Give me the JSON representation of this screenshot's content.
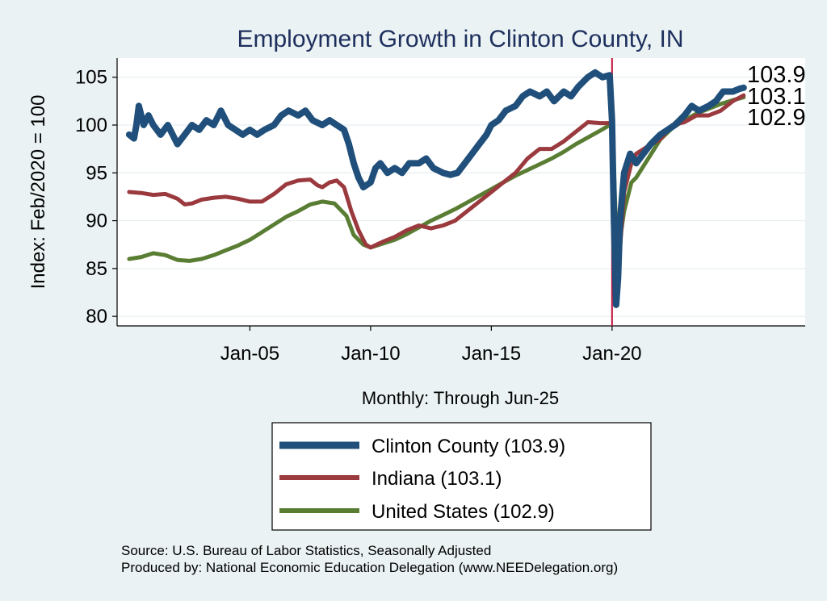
{
  "chart_data": {
    "type": "line",
    "title": "Employment Growth in Clinton  County, IN",
    "ylabel": "Index: Feb/2020 = 100",
    "xlabel": "Monthly: Through Jun-25",
    "ylim": [
      79,
      107
    ],
    "yticks": [
      80,
      85,
      90,
      95,
      100,
      105
    ],
    "xlim": [
      1999.5,
      2028.0
    ],
    "xticks": [
      {
        "label": "Jan-05",
        "value": 2005.0
      },
      {
        "label": "Jan-10",
        "value": 2010.0
      },
      {
        "label": "Jan-15",
        "value": 2015.0
      },
      {
        "label": "Jan-20",
        "value": 2020.0
      }
    ],
    "vline": 2020.0,
    "vline_color": "#c0143c",
    "grid": true,
    "series": [
      {
        "name": "Clinton  County",
        "legend": "Clinton  County (103.9)",
        "end_value": "103.9",
        "color": "#1f4f7a",
        "width": 8,
        "points": [
          [
            2000.0,
            99.0
          ],
          [
            2000.2,
            98.6
          ],
          [
            2000.3,
            100.0
          ],
          [
            2000.4,
            102.0
          ],
          [
            2000.6,
            100.0
          ],
          [
            2000.8,
            101.0
          ],
          [
            2001.0,
            100.0
          ],
          [
            2001.3,
            99.0
          ],
          [
            2001.6,
            100.0
          ],
          [
            2001.8,
            99.0
          ],
          [
            2002.0,
            98.0
          ],
          [
            2002.3,
            99.0
          ],
          [
            2002.6,
            100.0
          ],
          [
            2002.9,
            99.5
          ],
          [
            2003.2,
            100.5
          ],
          [
            2003.5,
            100.0
          ],
          [
            2003.8,
            101.5
          ],
          [
            2004.1,
            100.0
          ],
          [
            2004.4,
            99.5
          ],
          [
            2004.7,
            99.0
          ],
          [
            2005.0,
            99.5
          ],
          [
            2005.3,
            99.0
          ],
          [
            2005.6,
            99.5
          ],
          [
            2006.0,
            100.0
          ],
          [
            2006.3,
            101.0
          ],
          [
            2006.6,
            101.5
          ],
          [
            2007.0,
            101.0
          ],
          [
            2007.3,
            101.5
          ],
          [
            2007.6,
            100.5
          ],
          [
            2008.0,
            100.0
          ],
          [
            2008.3,
            100.5
          ],
          [
            2008.6,
            100.0
          ],
          [
            2008.9,
            99.5
          ],
          [
            2009.1,
            98.0
          ],
          [
            2009.3,
            96.0
          ],
          [
            2009.5,
            94.5
          ],
          [
            2009.7,
            93.5
          ],
          [
            2010.0,
            94.0
          ],
          [
            2010.2,
            95.5
          ],
          [
            2010.4,
            96.0
          ],
          [
            2010.7,
            95.0
          ],
          [
            2011.0,
            95.5
          ],
          [
            2011.3,
            95.0
          ],
          [
            2011.6,
            96.0
          ],
          [
            2012.0,
            96.0
          ],
          [
            2012.3,
            96.5
          ],
          [
            2012.6,
            95.5
          ],
          [
            2013.0,
            95.0
          ],
          [
            2013.3,
            94.8
          ],
          [
            2013.6,
            95.0
          ],
          [
            2013.9,
            96.0
          ],
          [
            2014.2,
            97.0
          ],
          [
            2014.5,
            98.0
          ],
          [
            2014.8,
            99.0
          ],
          [
            2015.0,
            100.0
          ],
          [
            2015.3,
            100.5
          ],
          [
            2015.6,
            101.5
          ],
          [
            2016.0,
            102.0
          ],
          [
            2016.3,
            103.0
          ],
          [
            2016.6,
            103.5
          ],
          [
            2017.0,
            103.0
          ],
          [
            2017.3,
            103.5
          ],
          [
            2017.6,
            102.5
          ],
          [
            2018.0,
            103.5
          ],
          [
            2018.3,
            103.0
          ],
          [
            2018.6,
            104.0
          ],
          [
            2019.0,
            105.0
          ],
          [
            2019.3,
            105.5
          ],
          [
            2019.6,
            105.0
          ],
          [
            2019.9,
            105.2
          ],
          [
            2020.0,
            100.5
          ],
          [
            2020.08,
            90.0
          ],
          [
            2020.17,
            81.2
          ],
          [
            2020.25,
            84.0
          ],
          [
            2020.33,
            90.0
          ],
          [
            2020.5,
            95.0
          ],
          [
            2020.75,
            97.0
          ],
          [
            2021.0,
            96.0
          ],
          [
            2021.3,
            97.0
          ],
          [
            2021.6,
            98.0
          ],
          [
            2022.0,
            99.0
          ],
          [
            2022.3,
            99.5
          ],
          [
            2022.6,
            100.0
          ],
          [
            2023.0,
            101.0
          ],
          [
            2023.3,
            102.0
          ],
          [
            2023.6,
            101.5
          ],
          [
            2024.0,
            102.0
          ],
          [
            2024.3,
            102.5
          ],
          [
            2024.6,
            103.5
          ],
          [
            2025.0,
            103.5
          ],
          [
            2025.3,
            103.8
          ],
          [
            2025.45,
            103.9
          ]
        ]
      },
      {
        "name": "Indiana",
        "legend": "Indiana (103.1)",
        "end_value": "103.1",
        "color": "#9b3a3e",
        "width": 5,
        "points": [
          [
            2000.0,
            93.0
          ],
          [
            2000.5,
            92.9
          ],
          [
            2001.0,
            92.7
          ],
          [
            2001.5,
            92.8
          ],
          [
            2002.0,
            92.3
          ],
          [
            2002.3,
            91.7
          ],
          [
            2002.6,
            91.8
          ],
          [
            2003.0,
            92.2
          ],
          [
            2003.5,
            92.4
          ],
          [
            2004.0,
            92.5
          ],
          [
            2004.5,
            92.3
          ],
          [
            2005.0,
            92.0
          ],
          [
            2005.5,
            92.0
          ],
          [
            2006.0,
            92.8
          ],
          [
            2006.5,
            93.8
          ],
          [
            2007.0,
            94.2
          ],
          [
            2007.5,
            94.3
          ],
          [
            2007.8,
            93.7
          ],
          [
            2008.0,
            93.5
          ],
          [
            2008.3,
            94.0
          ],
          [
            2008.6,
            94.2
          ],
          [
            2008.9,
            93.5
          ],
          [
            2009.2,
            91.0
          ],
          [
            2009.5,
            89.0
          ],
          [
            2009.8,
            87.5
          ],
          [
            2010.0,
            87.2
          ],
          [
            2010.5,
            87.8
          ],
          [
            2011.0,
            88.3
          ],
          [
            2011.5,
            89.0
          ],
          [
            2012.0,
            89.5
          ],
          [
            2012.5,
            89.2
          ],
          [
            2013.0,
            89.5
          ],
          [
            2013.5,
            90.0
          ],
          [
            2014.0,
            91.0
          ],
          [
            2014.5,
            92.0
          ],
          [
            2015.0,
            93.0
          ],
          [
            2015.5,
            94.0
          ],
          [
            2016.0,
            95.0
          ],
          [
            2016.5,
            96.5
          ],
          [
            2017.0,
            97.5
          ],
          [
            2017.5,
            97.5
          ],
          [
            2018.0,
            98.3
          ],
          [
            2018.5,
            99.3
          ],
          [
            2019.0,
            100.3
          ],
          [
            2019.5,
            100.2
          ],
          [
            2019.9,
            100.2
          ],
          [
            2020.0,
            100.0
          ],
          [
            2020.1,
            92.0
          ],
          [
            2020.2,
            83.5
          ],
          [
            2020.3,
            86.0
          ],
          [
            2020.5,
            93.0
          ],
          [
            2020.8,
            96.0
          ],
          [
            2021.0,
            97.0
          ],
          [
            2021.5,
            97.8
          ],
          [
            2022.0,
            98.5
          ],
          [
            2022.5,
            100.0
          ],
          [
            2023.0,
            100.3
          ],
          [
            2023.5,
            101.0
          ],
          [
            2024.0,
            101.0
          ],
          [
            2024.5,
            101.5
          ],
          [
            2025.0,
            102.5
          ],
          [
            2025.45,
            103.1
          ]
        ]
      },
      {
        "name": "United States",
        "legend": "United States (102.9)",
        "end_value": "102.9",
        "color": "#5a7d34",
        "width": 5,
        "points": [
          [
            2000.0,
            86.0
          ],
          [
            2000.5,
            86.2
          ],
          [
            2001.0,
            86.6
          ],
          [
            2001.5,
            86.4
          ],
          [
            2002.0,
            85.9
          ],
          [
            2002.5,
            85.8
          ],
          [
            2003.0,
            86.0
          ],
          [
            2003.5,
            86.4
          ],
          [
            2004.0,
            86.9
          ],
          [
            2004.5,
            87.4
          ],
          [
            2005.0,
            88.0
          ],
          [
            2005.5,
            88.8
          ],
          [
            2006.0,
            89.6
          ],
          [
            2006.5,
            90.4
          ],
          [
            2007.0,
            91.0
          ],
          [
            2007.5,
            91.7
          ],
          [
            2008.0,
            92.0
          ],
          [
            2008.5,
            91.8
          ],
          [
            2009.0,
            90.5
          ],
          [
            2009.3,
            88.5
          ],
          [
            2009.7,
            87.5
          ],
          [
            2010.0,
            87.2
          ],
          [
            2010.5,
            87.6
          ],
          [
            2011.0,
            88.0
          ],
          [
            2011.5,
            88.6
          ],
          [
            2012.0,
            89.3
          ],
          [
            2012.5,
            90.0
          ],
          [
            2013.0,
            90.6
          ],
          [
            2013.5,
            91.2
          ],
          [
            2014.0,
            91.9
          ],
          [
            2014.5,
            92.6
          ],
          [
            2015.0,
            93.3
          ],
          [
            2015.5,
            94.0
          ],
          [
            2016.0,
            94.7
          ],
          [
            2016.5,
            95.3
          ],
          [
            2017.0,
            95.9
          ],
          [
            2017.5,
            96.5
          ],
          [
            2018.0,
            97.2
          ],
          [
            2018.5,
            98.0
          ],
          [
            2019.0,
            98.7
          ],
          [
            2019.5,
            99.4
          ],
          [
            2019.9,
            100.0
          ],
          [
            2020.0,
            100.0
          ],
          [
            2020.1,
            94.0
          ],
          [
            2020.2,
            86.0
          ],
          [
            2020.3,
            87.5
          ],
          [
            2020.5,
            91.0
          ],
          [
            2020.8,
            94.0
          ],
          [
            2021.0,
            94.5
          ],
          [
            2021.5,
            96.5
          ],
          [
            2022.0,
            98.5
          ],
          [
            2022.5,
            99.7
          ],
          [
            2023.0,
            100.5
          ],
          [
            2023.5,
            101.2
          ],
          [
            2024.0,
            101.7
          ],
          [
            2024.5,
            102.2
          ],
          [
            2025.0,
            102.6
          ],
          [
            2025.45,
            102.9
          ]
        ]
      }
    ],
    "notes": [
      "Source: U.S. Bureau of Labor Statistics, Seasonally Adjusted",
      "Produced by: National Economic Education Delegation (www.NEEDelegation.org)"
    ]
  }
}
